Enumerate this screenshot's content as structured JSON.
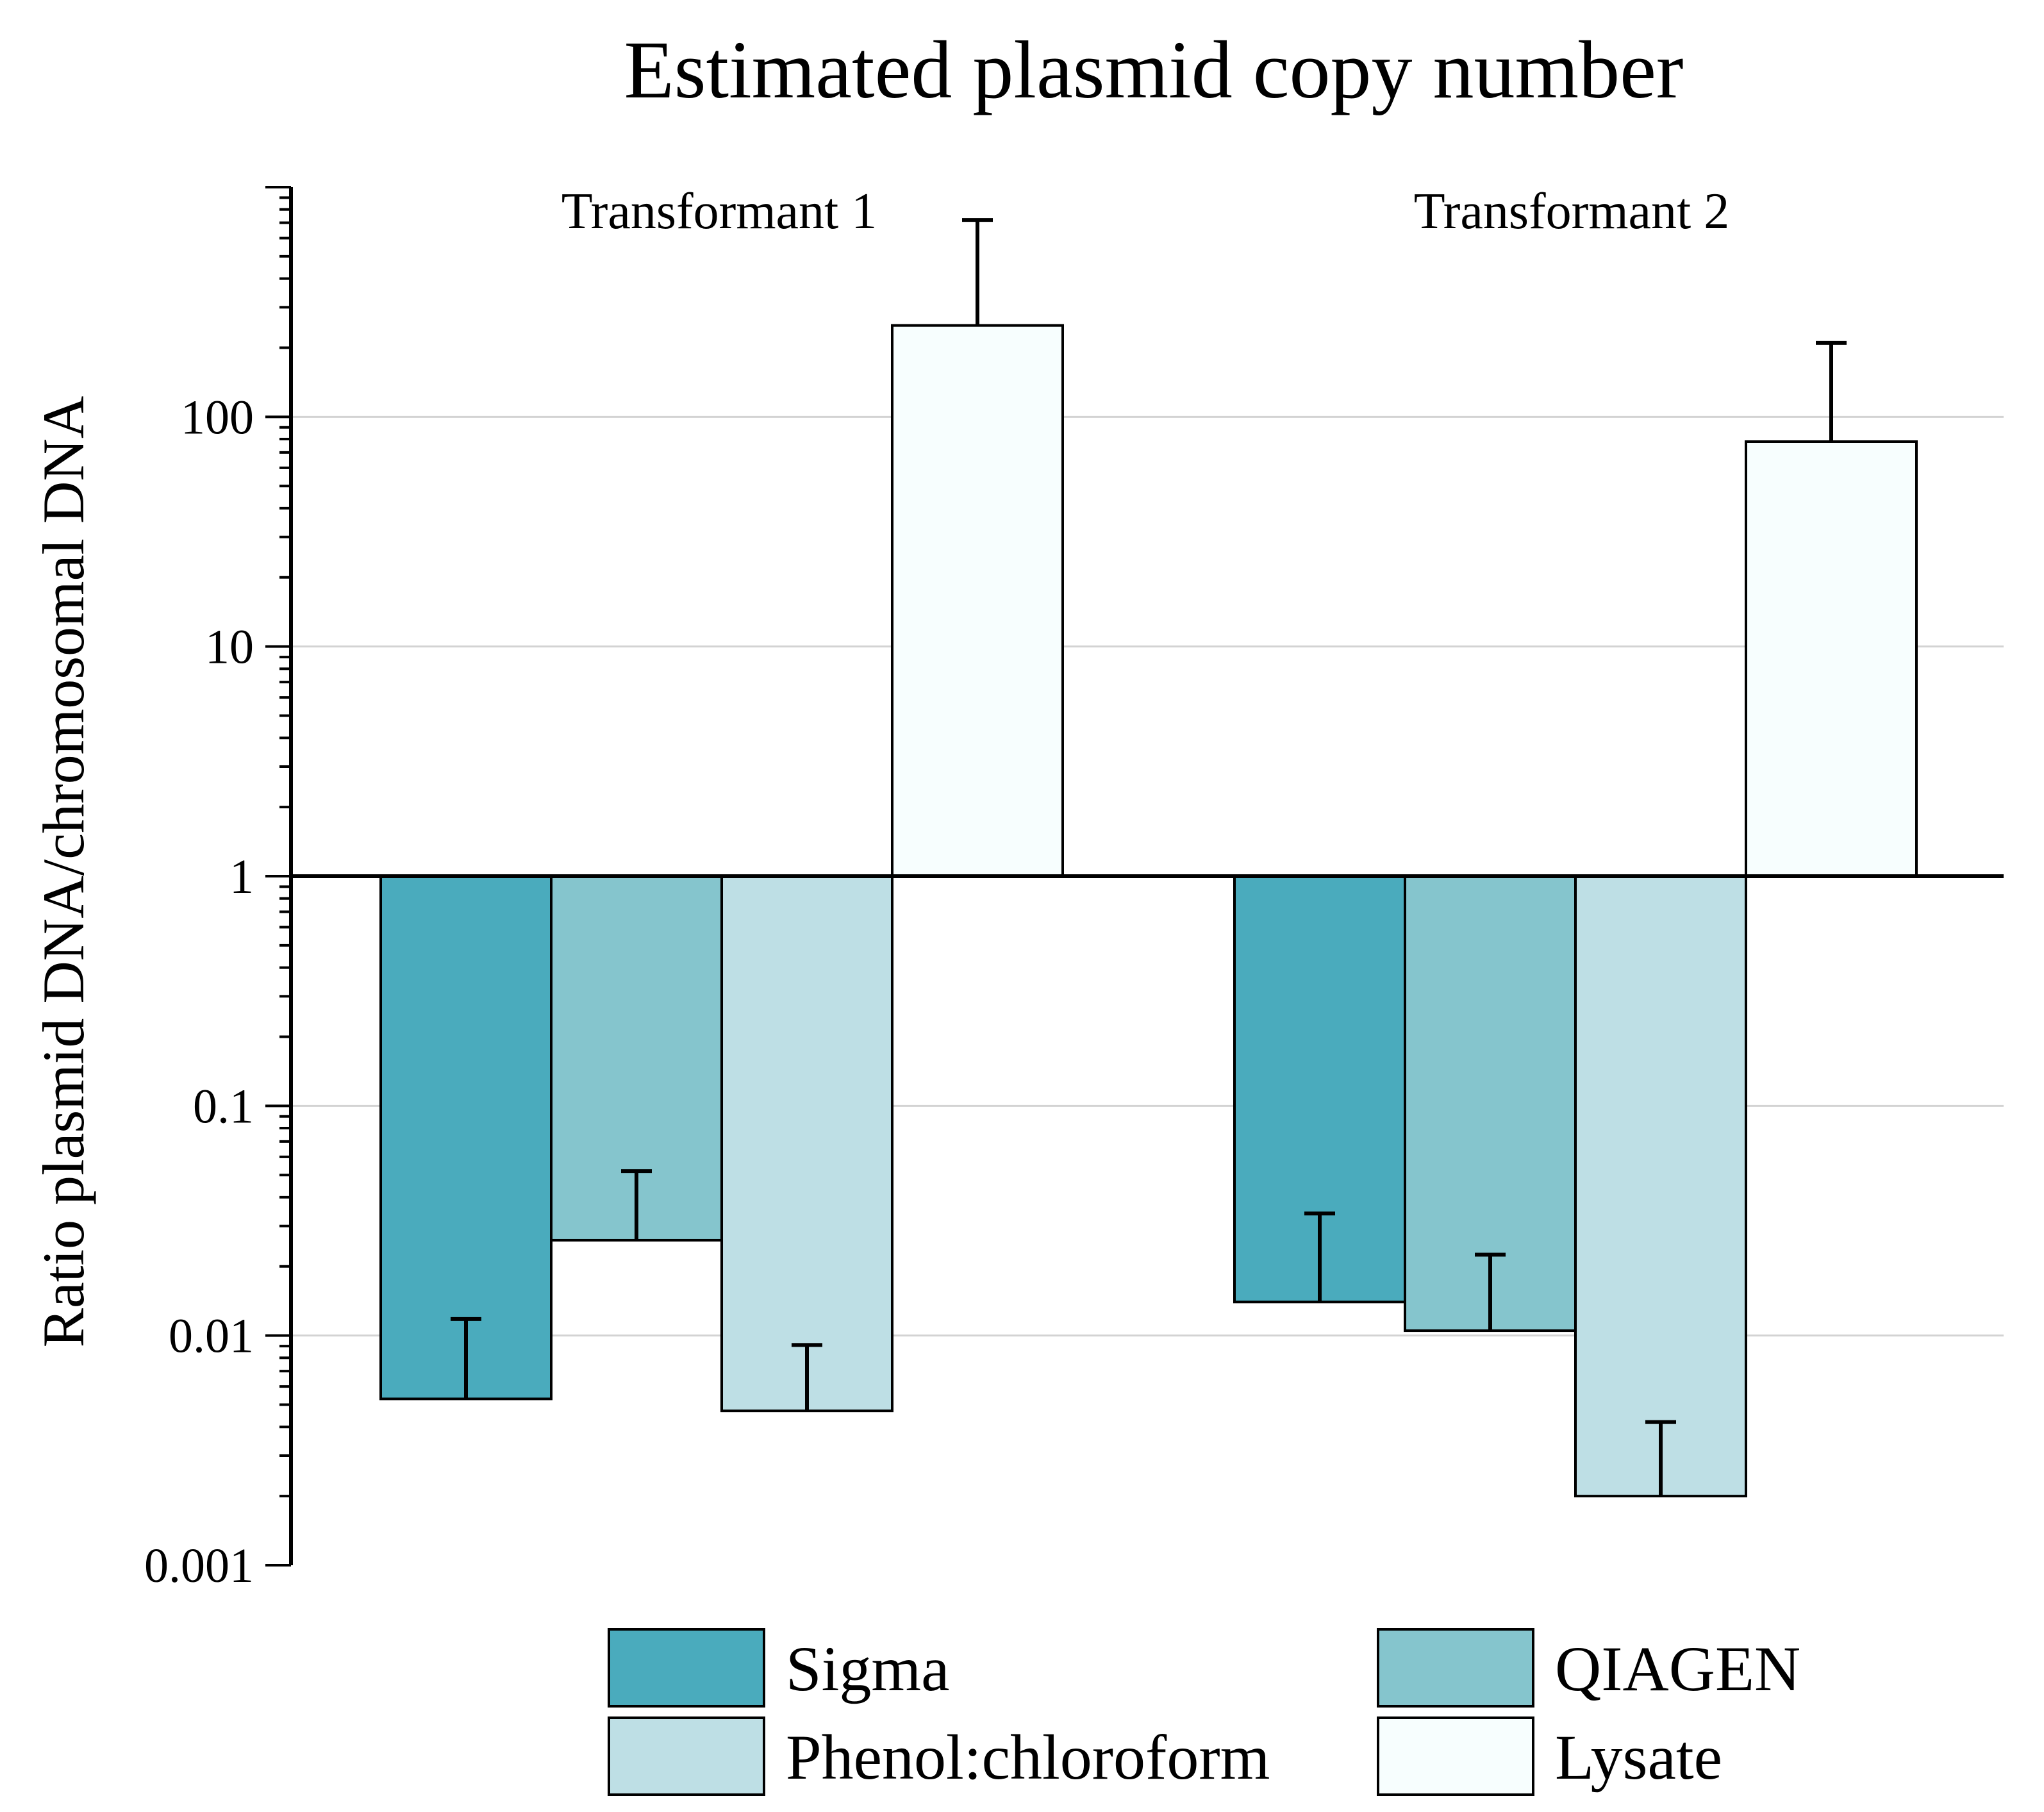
{
  "chart_data": {
    "type": "bar",
    "title": "Estimated plasmid copy number",
    "ylabel": "Ratio plasmid DNA/chromosomal DNA",
    "xlabel": "",
    "yscale": "log",
    "ylim": [
      0.001,
      1000
    ],
    "baseline": 1,
    "yticks": [
      {
        "value": 0.001,
        "label": "0.001"
      },
      {
        "value": 0.01,
        "label": "0.01"
      },
      {
        "value": 0.1,
        "label": "0.1"
      },
      {
        "value": 1,
        "label": "1"
      },
      {
        "value": 10,
        "label": "10"
      },
      {
        "value": 100,
        "label": "100"
      }
    ],
    "gridlines": [
      0.01,
      0.1,
      10,
      100
    ],
    "categories": [
      "Transformant 1",
      "Transformant 2"
    ],
    "series": [
      {
        "name": "Sigma",
        "color": "#4aabbd",
        "values": [
          0.0053,
          0.014
        ],
        "error_upper": [
          0.0118,
          0.034
        ]
      },
      {
        "name": "QIAGEN",
        "color": "#85c5cd",
        "values": [
          0.026,
          0.0105
        ],
        "error_upper": [
          0.052,
          0.0225
        ]
      },
      {
        "name": "Phenol:chloroform",
        "color": "#bedfe5",
        "values": [
          0.0047,
          0.002
        ],
        "error_upper": [
          0.0091,
          0.0042
        ]
      },
      {
        "name": "Lysate",
        "color": "#f7fefe",
        "values": [
          250,
          78
        ],
        "error_upper": [
          720,
          210
        ]
      }
    ],
    "legend": {
      "placement": "bottom",
      "columns": 2,
      "order": [
        "Sigma",
        "QIAGEN",
        "Phenol:chloroform",
        "Lysate"
      ]
    }
  }
}
